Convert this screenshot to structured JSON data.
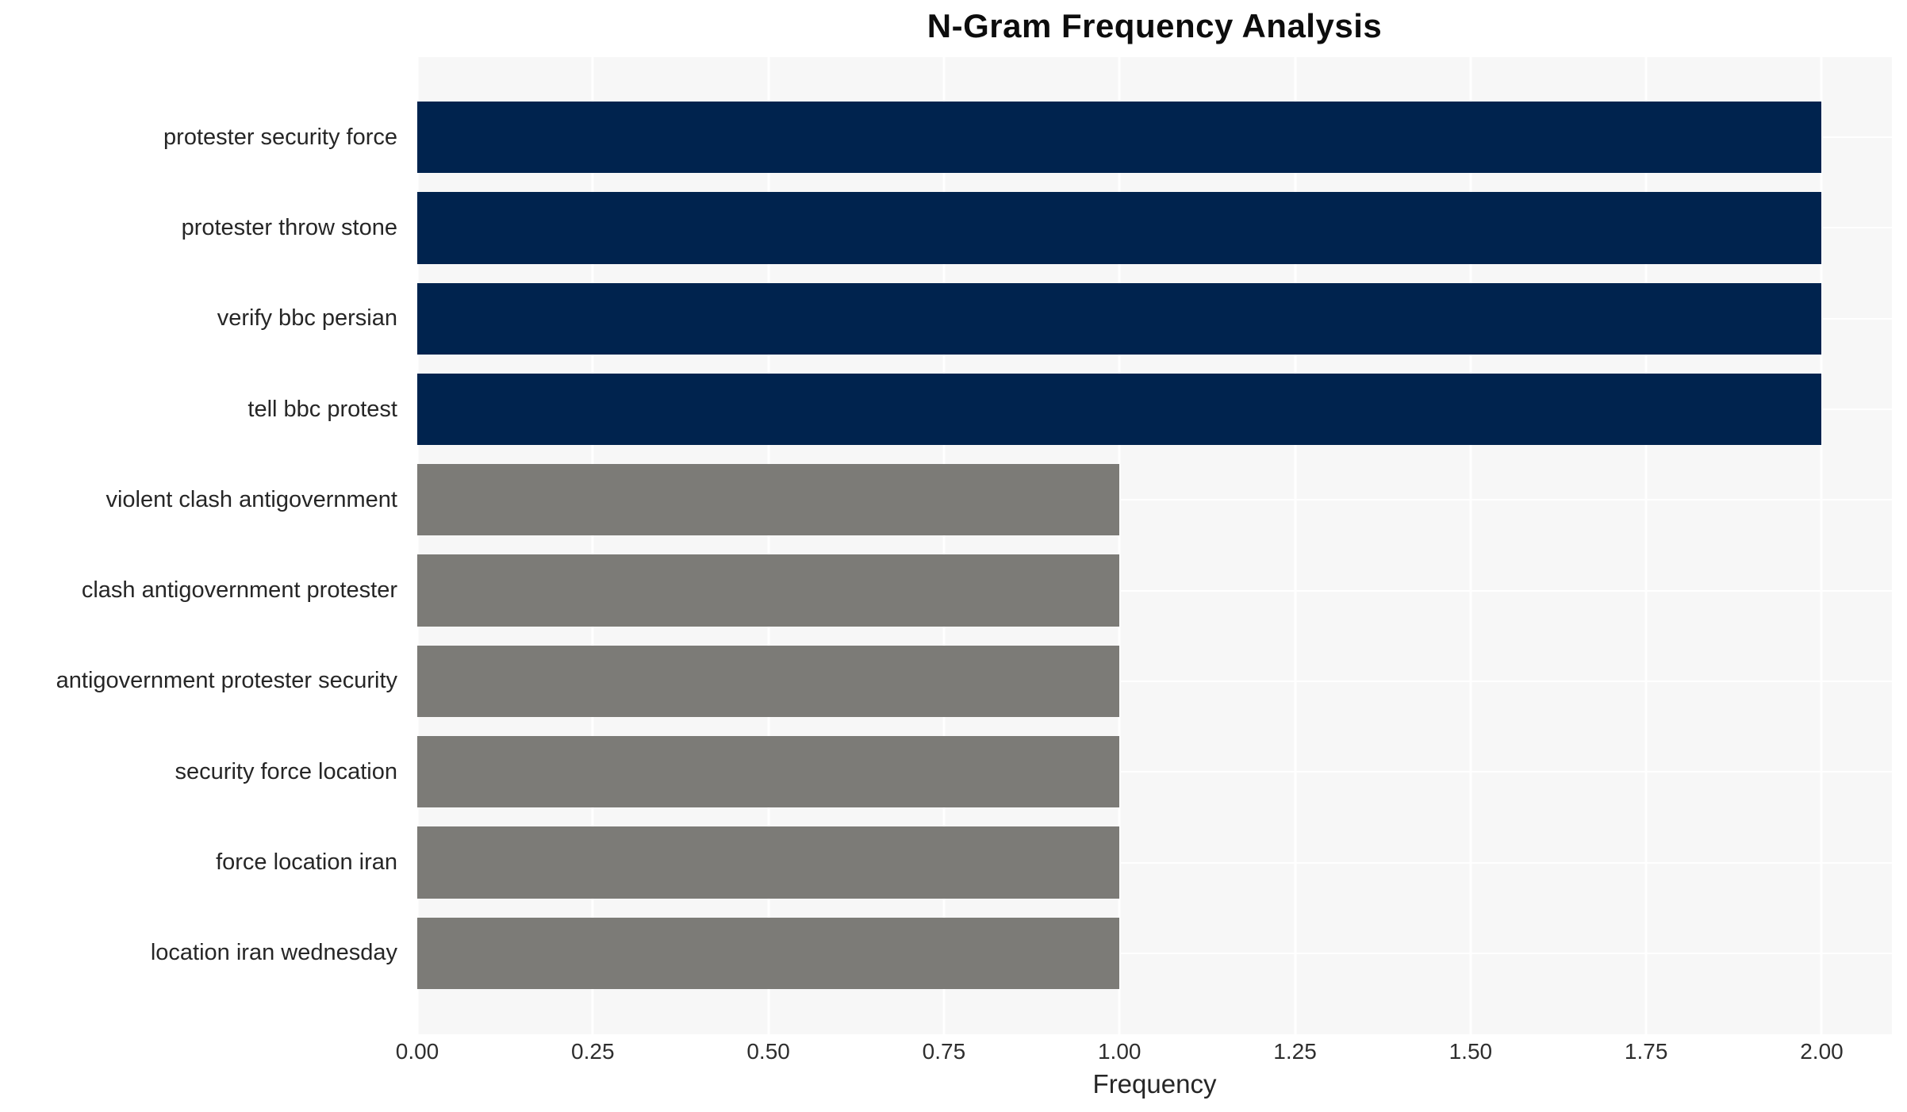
{
  "chart_data": {
    "type": "bar",
    "orientation": "horizontal",
    "title": "N-Gram Frequency Analysis",
    "xlabel": "Frequency",
    "ylabel": "",
    "categories": [
      "protester security force",
      "protester throw stone",
      "verify bbc persian",
      "tell bbc protest",
      "violent clash antigovernment",
      "clash antigovernment protester",
      "antigovernment protester security",
      "security force location",
      "force location iran",
      "location iran wednesday"
    ],
    "values": [
      2,
      2,
      2,
      2,
      1,
      1,
      1,
      1,
      1,
      1
    ],
    "bar_colors": [
      "#00234e",
      "#00234e",
      "#00234e",
      "#00234e",
      "#7c7b77",
      "#7c7b77",
      "#7c7b77",
      "#7c7b77",
      "#7c7b77",
      "#7c7b77"
    ],
    "x_ticks": [
      {
        "label": "0.00",
        "value": 0
      },
      {
        "label": "0.25",
        "value": 0.25
      },
      {
        "label": "0.50",
        "value": 0.5
      },
      {
        "label": "0.75",
        "value": 0.75
      },
      {
        "label": "1.00",
        "value": 1
      },
      {
        "label": "1.25",
        "value": 1.25
      },
      {
        "label": "1.50",
        "value": 1.5
      },
      {
        "label": "1.75",
        "value": 1.75
      },
      {
        "label": "2.00",
        "value": 2
      }
    ],
    "xlim": [
      0,
      2.1
    ],
    "grid": true,
    "legend": false,
    "colors": {
      "navy_bar": "#00234e",
      "gray_bar": "#7c7b77",
      "plot_background": "#f7f7f7",
      "gridline": "#ffffff",
      "label_text": "#262626",
      "title_text": "#0d0d0d"
    }
  }
}
